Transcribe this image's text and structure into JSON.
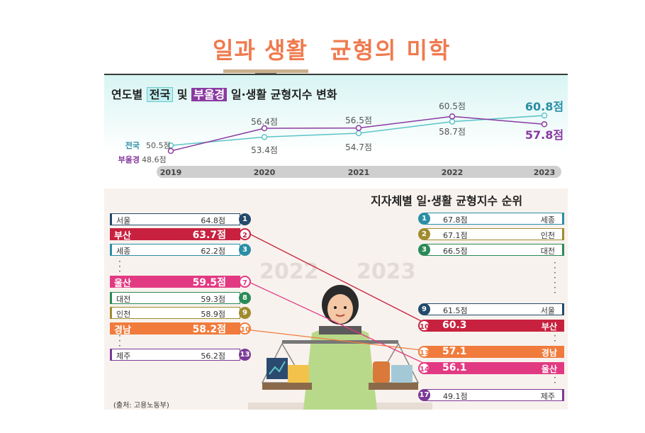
{
  "header": {
    "title_part1": "일과 생활",
    "title_part2": "균형의 미학"
  },
  "line_chart_title": {
    "prefix": "연도별",
    "group1": "전국",
    "connector": "및",
    "group2": "부울경",
    "suffix": "일·생활 균형지수 변화"
  },
  "ranking_title": "지자체별 일·생활 균형지수 순위",
  "year_labels": [
    "2022",
    "2023"
  ],
  "source": "(출처: 고용노동부)",
  "colors": {
    "national": "#5cc4c7",
    "buulgyeong": "#8a3aa1",
    "navy": "#234a6b",
    "crimson": "#c8213f",
    "teal": "#2a8ea6",
    "pink": "#e23a82",
    "green": "#2a8a57",
    "olive": "#a08c2f",
    "orange": "#f07b3c",
    "purple": "#7b3a97"
  },
  "chart_data": [
    {
      "type": "line",
      "x": [
        "2019",
        "2020",
        "2021",
        "2022",
        "2023"
      ],
      "series": [
        {
          "name": "전국",
          "values": [
            50.5,
            53.4,
            54.7,
            58.7,
            60.8
          ],
          "labels": [
            "50.5점",
            "53.4점",
            "54.7점",
            "58.7점",
            "60.8점"
          ]
        },
        {
          "name": "부울경",
          "values": [
            48.6,
            56.4,
            56.5,
            60.5,
            57.8
          ],
          "labels": [
            "48.6점",
            "56.4점",
            "56.5점",
            "60.5점",
            "57.8점"
          ]
        }
      ]
    },
    {
      "type": "table",
      "rank_2022": [
        {
          "region": "서울",
          "score": "64.8점",
          "rank": "1"
        },
        {
          "region": "부산",
          "score": "63.7점",
          "rank": "2"
        },
        {
          "region": "세종",
          "score": "62.2점",
          "rank": "3"
        },
        {
          "region": "울산",
          "score": "59.5점",
          "rank": "7"
        },
        {
          "region": "대전",
          "score": "59.3점",
          "rank": "8"
        },
        {
          "region": "인천",
          "score": "58.9점",
          "rank": "9"
        },
        {
          "region": "경남",
          "score": "58.2점",
          "rank": "10"
        },
        {
          "region": "제주",
          "score": "56.2점",
          "rank": "13"
        }
      ],
      "rank_2023": [
        {
          "region": "세종",
          "score": "67.8점",
          "rank": "1"
        },
        {
          "region": "인천",
          "score": "67.1점",
          "rank": "2"
        },
        {
          "region": "대전",
          "score": "66.5점",
          "rank": "3"
        },
        {
          "region": "서울",
          "score": "61.5점",
          "rank": "9"
        },
        {
          "region": "부산",
          "score": "60.3",
          "rank": "10"
        },
        {
          "region": "경남",
          "score": "57.1",
          "rank": "13"
        },
        {
          "region": "울산",
          "score": "56.1",
          "rank": "14"
        },
        {
          "region": "제주",
          "score": "49.1점",
          "rank": "17"
        }
      ]
    }
  ]
}
